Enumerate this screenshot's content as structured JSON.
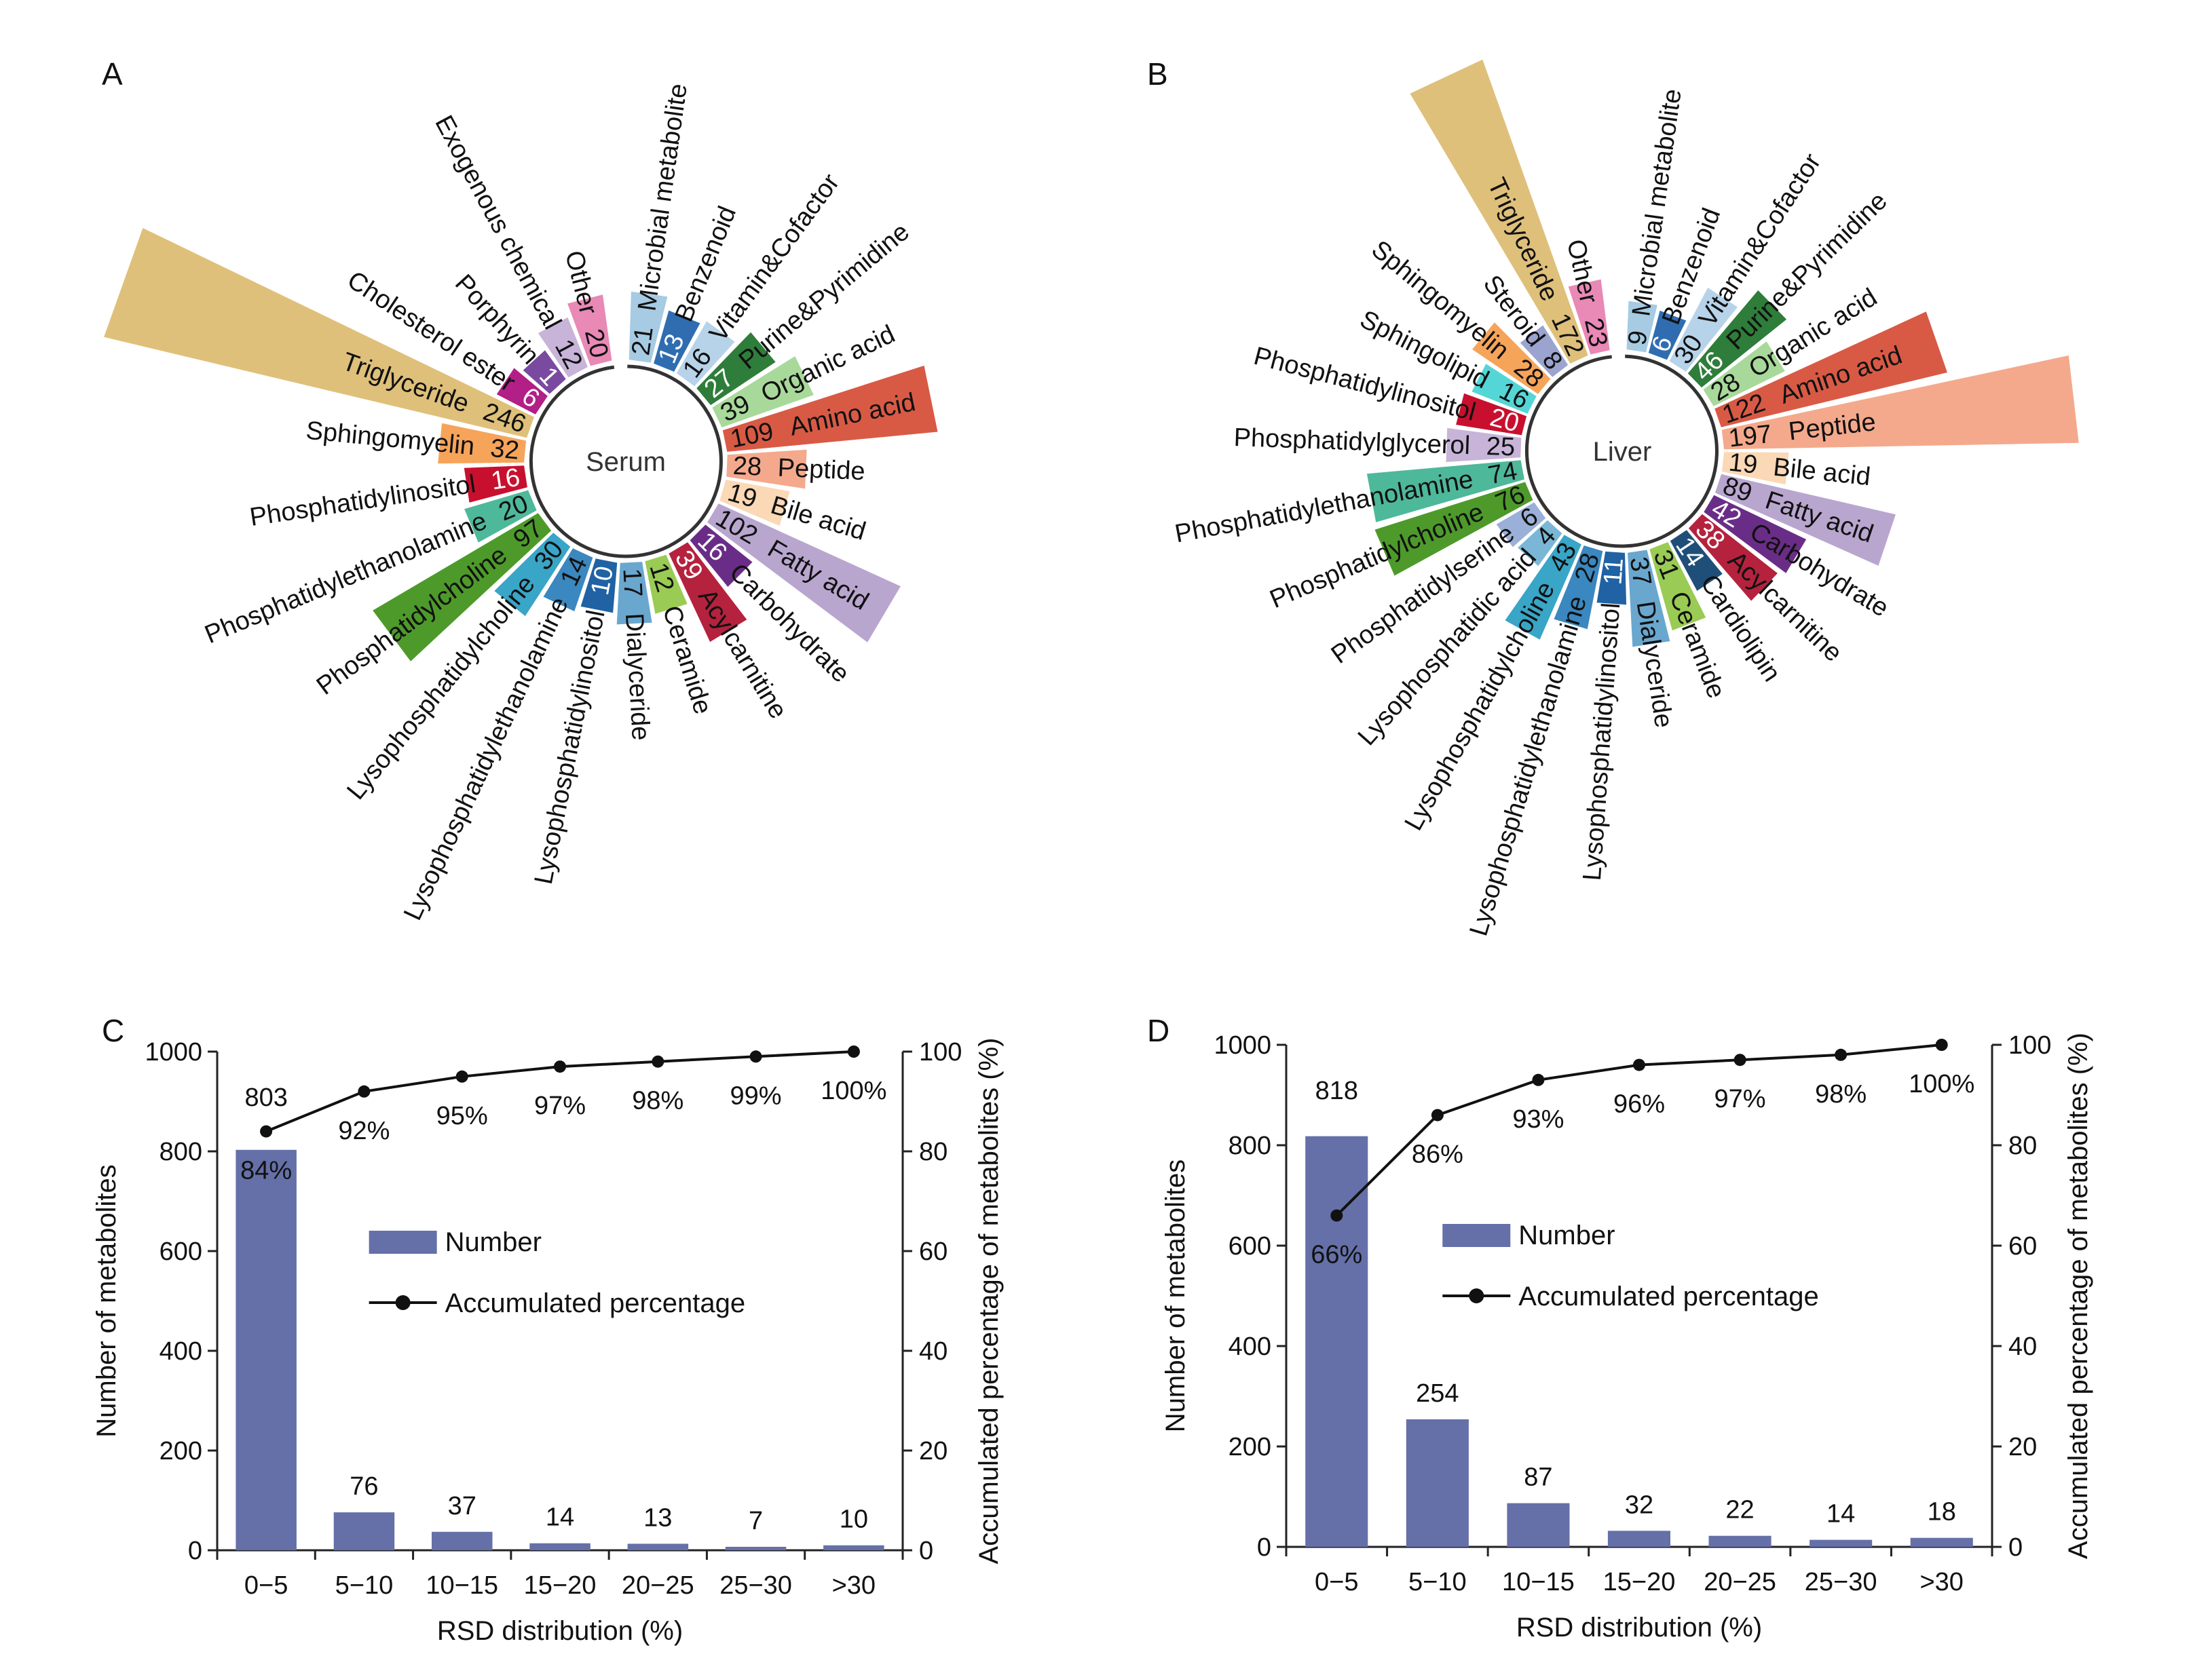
{
  "chart_data": [
    {
      "panel": "A",
      "type": "radial-bar",
      "center_label": "Serum",
      "categories": [
        {
          "name": "Microbial metabolite",
          "value": 21,
          "color": "#a6cbe3"
        },
        {
          "name": "Benzenoid",
          "value": 13,
          "color": "#2f6db0"
        },
        {
          "name": "Vitamin&Cofactor",
          "value": 16,
          "color": "#b7d3ea"
        },
        {
          "name": "Purine&Pyrimidine",
          "value": 27,
          "color": "#2e7d3a"
        },
        {
          "name": "Organic acid",
          "value": 39,
          "color": "#a8d99a"
        },
        {
          "name": "Amino acid",
          "value": 109,
          "color": "#d85a45"
        },
        {
          "name": "Peptide",
          "value": 28,
          "color": "#f4a98c"
        },
        {
          "name": "Bile acid",
          "value": 19,
          "color": "#fbd8b6"
        },
        {
          "name": "Fatty acid",
          "value": 102,
          "color": "#b9a6cf"
        },
        {
          "name": "Carbohydrate",
          "value": 16,
          "color": "#6a2d87"
        },
        {
          "name": "Acylcarnitine",
          "value": 39,
          "color": "#b5223e"
        },
        {
          "name": "Ceramide",
          "value": 12,
          "color": "#9acb54"
        },
        {
          "name": "Dialyceride",
          "value": 17,
          "color": "#6aa7cf"
        },
        {
          "name": "Lysophosphatidylinositol",
          "value": 10,
          "color": "#2062a3"
        },
        {
          "name": "Lysophosphatidylethanolamine",
          "value": 14,
          "color": "#3b87bf"
        },
        {
          "name": "Lysophosphatidylcholine",
          "value": 30,
          "color": "#39a5c7"
        },
        {
          "name": "Phosphatidylcholine",
          "value": 97,
          "color": "#4d9a2b"
        },
        {
          "name": "Phosphatidylethanolamine",
          "value": 20,
          "color": "#4eb89a"
        },
        {
          "name": "Phosphatidylinositol",
          "value": 16,
          "color": "#c8102e"
        },
        {
          "name": "Sphingomyelin",
          "value": 32,
          "color": "#f6a45a"
        },
        {
          "name": "Triglyceride",
          "value": 246,
          "color": "#dfc07a"
        },
        {
          "name": "Cholesterol ester",
          "value": 6,
          "color": "#b21f86"
        },
        {
          "name": "Porphyrin",
          "value": 1,
          "color": "#7a4aa0"
        },
        {
          "name": "Exogenous chemical",
          "value": 12,
          "color": "#c7b4d8"
        },
        {
          "name": "Other",
          "value": 20,
          "color": "#e889b6"
        }
      ]
    },
    {
      "panel": "B",
      "type": "radial-bar",
      "center_label": "Liver",
      "categories": [
        {
          "name": "Microbial metabolite",
          "value": 9,
          "color": "#a6cbe3"
        },
        {
          "name": "Benzenoid",
          "value": 6,
          "color": "#2f6db0"
        },
        {
          "name": "Vitamin&Cofactor",
          "value": 30,
          "color": "#b7d3ea"
        },
        {
          "name": "Purine&Pyrimidine",
          "value": 46,
          "color": "#2e7d3a"
        },
        {
          "name": "Organic acid",
          "value": 28,
          "color": "#a8d99a"
        },
        {
          "name": "Amino acid",
          "value": 122,
          "color": "#d85a45"
        },
        {
          "name": "Peptide",
          "value": 197,
          "color": "#f4a98c"
        },
        {
          "name": "Bile acid",
          "value": 19,
          "color": "#fbd8b6"
        },
        {
          "name": "Fatty acid",
          "value": 89,
          "color": "#b9a6cf"
        },
        {
          "name": "Carbohydrate",
          "value": 42,
          "color": "#6a2d87"
        },
        {
          "name": "Acylcarnitine",
          "value": 38,
          "color": "#b5223e"
        },
        {
          "name": "Cardiolipin",
          "value": 14,
          "color": "#1f4f79"
        },
        {
          "name": "Ceramide",
          "value": 31,
          "color": "#9acb54"
        },
        {
          "name": "Dialyceride",
          "value": 37,
          "color": "#6aa7cf"
        },
        {
          "name": "Lysophosphatidylinositol",
          "value": 11,
          "color": "#2062a3"
        },
        {
          "name": "Lysophosphatidylethanolamine",
          "value": 28,
          "color": "#3b87bf"
        },
        {
          "name": "Lysophosphatidylcholine",
          "value": 43,
          "color": "#39a5c7"
        },
        {
          "name": "Lysophosphatidic acid",
          "value": 4,
          "color": "#7ab7d6"
        },
        {
          "name": "Phosphatidylserine",
          "value": 6,
          "color": "#9bb0d8"
        },
        {
          "name": "Phosphatidylcholine",
          "value": 76,
          "color": "#4d9a2b"
        },
        {
          "name": "Phosphatidylethanolamine",
          "value": 74,
          "color": "#4eb89a"
        },
        {
          "name": "Phosphatidylglycerol",
          "value": 25,
          "color": "#c7b4d8"
        },
        {
          "name": "Phosphatidylinositol",
          "value": 20,
          "color": "#c8102e"
        },
        {
          "name": "Sphingolipid",
          "value": 16,
          "color": "#55d6d6"
        },
        {
          "name": "Sphingomyelin",
          "value": 28,
          "color": "#f6a45a"
        },
        {
          "name": "Steroid",
          "value": 8,
          "color": "#9ba3cf"
        },
        {
          "name": "Triglyceride",
          "value": 172,
          "color": "#dfc07a"
        },
        {
          "name": "Other",
          "value": 23,
          "color": "#e889b6"
        }
      ]
    },
    {
      "panel": "C",
      "type": "bar",
      "categories": [
        "0−5",
        "5−10",
        "10−15",
        "15−20",
        "20−25",
        "25−30",
        ">30"
      ],
      "values": [
        803,
        76,
        37,
        14,
        13,
        7,
        10
      ],
      "line_values": [
        84,
        92,
        95,
        97,
        98,
        99,
        100
      ],
      "line_labels": [
        "84%",
        "92%",
        "95%",
        "97%",
        "98%",
        "99%",
        "100%"
      ],
      "xlabel": "RSD distribution (%)",
      "ylabel": "Number of metabolites",
      "y2label": "Accumulated percentage of metabolites (%)",
      "ylim": [
        0,
        1000
      ],
      "y_ticks": [
        "0",
        "200",
        "400",
        "600",
        "800",
        "1000"
      ],
      "y2lim": [
        0,
        100
      ],
      "y2_ticks": [
        "0",
        "20",
        "40",
        "60",
        "80",
        "100"
      ],
      "legend": [
        "Number",
        "Accumulated percentage"
      ],
      "bar_color": "#6570a8"
    },
    {
      "panel": "D",
      "type": "bar",
      "categories": [
        "0−5",
        "5−10",
        "10−15",
        "15−20",
        "20−25",
        "25−30",
        ">30"
      ],
      "values": [
        818,
        254,
        87,
        32,
        22,
        14,
        18
      ],
      "line_values": [
        66,
        86,
        93,
        96,
        97,
        98,
        100
      ],
      "line_labels": [
        "66%",
        "86%",
        "93%",
        "96%",
        "97%",
        "98%",
        "100%"
      ],
      "xlabel": "RSD distribution (%)",
      "ylabel": "Number of metabolites",
      "y2label": "Accumulated percentage of metabolites (%)",
      "ylim": [
        0,
        1000
      ],
      "y_ticks": [
        "0",
        "200",
        "400",
        "600",
        "800",
        "1000"
      ],
      "y2lim": [
        0,
        100
      ],
      "y2_ticks": [
        "0",
        "20",
        "40",
        "60",
        "80",
        "100"
      ],
      "legend": [
        "Number",
        "Accumulated percentage"
      ],
      "bar_color": "#6570a8"
    }
  ]
}
